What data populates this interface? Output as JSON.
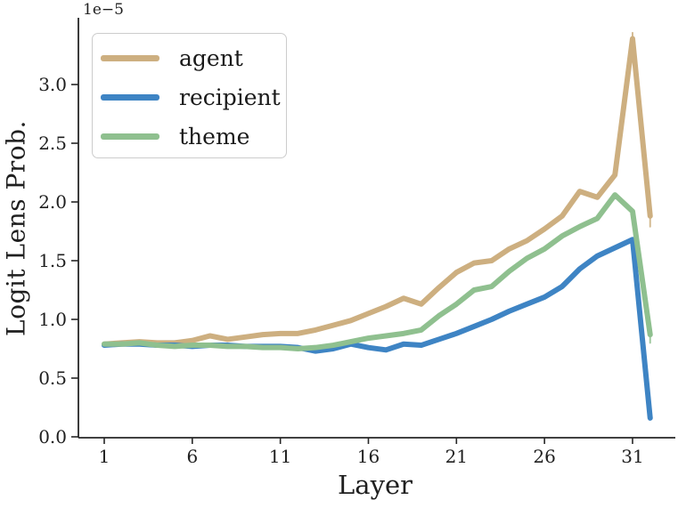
{
  "figure": {
    "background": "#ffffff",
    "text_color": "#1f1f1f",
    "spine_color": "#262626"
  },
  "chart_data": {
    "type": "line",
    "title": "",
    "xlabel": "Layer",
    "ylabel": "Logit Lens Prob.",
    "y_offset_label": "1e−5",
    "grid": false,
    "legend_position": "upper left",
    "xlim": [
      -0.5,
      33.4
    ],
    "ylim": [
      0,
      3.57
    ],
    "xticks": [
      "1",
      "6",
      "11",
      "16",
      "21",
      "26",
      "31"
    ],
    "xtick_values": [
      1,
      6,
      11,
      16,
      21,
      26,
      31
    ],
    "yticks": [
      "0.0",
      "0.5",
      "1.0",
      "1.5",
      "2.0",
      "2.5",
      "3.0"
    ],
    "ytick_values": [
      0,
      0.5,
      1.0,
      1.5,
      2.0,
      2.5,
      3.0
    ],
    "y_scale_factor": "1e-5",
    "x": [
      1,
      2,
      3,
      4,
      5,
      6,
      7,
      8,
      9,
      10,
      11,
      12,
      13,
      14,
      15,
      16,
      17,
      18,
      19,
      20,
      21,
      22,
      23,
      24,
      25,
      26,
      27,
      28,
      29,
      30,
      31,
      32
    ],
    "series": [
      {
        "name": "agent",
        "color": "#CDAF80",
        "values": [
          0.79,
          0.8,
          0.81,
          0.8,
          0.8,
          0.82,
          0.86,
          0.83,
          0.85,
          0.87,
          0.88,
          0.88,
          0.91,
          0.95,
          0.99,
          1.05,
          1.11,
          1.18,
          1.13,
          1.27,
          1.4,
          1.48,
          1.5,
          1.6,
          1.67,
          1.77,
          1.88,
          2.09,
          2.04,
          2.23,
          3.39,
          1.88
        ]
      },
      {
        "name": "recipient",
        "color": "#3E84C4",
        "values": [
          0.78,
          0.79,
          0.79,
          0.78,
          0.78,
          0.77,
          0.78,
          0.78,
          0.77,
          0.77,
          0.77,
          0.76,
          0.73,
          0.75,
          0.79,
          0.76,
          0.74,
          0.79,
          0.78,
          0.83,
          0.88,
          0.94,
          1.0,
          1.07,
          1.13,
          1.19,
          1.28,
          1.43,
          1.54,
          1.61,
          1.68,
          0.16
        ]
      },
      {
        "name": "theme",
        "color": "#8FC08F",
        "values": [
          0.79,
          0.79,
          0.8,
          0.78,
          0.77,
          0.78,
          0.78,
          0.77,
          0.77,
          0.76,
          0.76,
          0.75,
          0.76,
          0.78,
          0.81,
          0.84,
          0.86,
          0.88,
          0.91,
          1.03,
          1.13,
          1.25,
          1.28,
          1.41,
          1.52,
          1.6,
          1.71,
          1.79,
          1.86,
          2.06,
          1.92,
          0.87
        ]
      }
    ],
    "error_whiskers": [
      {
        "series": "agent",
        "x": 31,
        "lo": 3.34,
        "hi": 3.44
      },
      {
        "series": "agent",
        "x": 32,
        "lo": 1.79,
        "hi": 1.97
      },
      {
        "series": "theme",
        "x": 32,
        "lo": 0.8,
        "hi": 0.94
      }
    ],
    "legend": [
      "agent",
      "recipient",
      "theme"
    ]
  }
}
